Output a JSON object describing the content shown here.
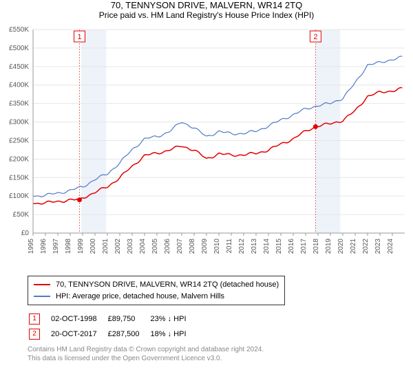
{
  "title": "70, TENNYSON DRIVE, MALVERN, WR14 2TQ",
  "subtitle": "Price paid vs. HM Land Registry's House Price Index (HPI)",
  "chart": {
    "type": "line",
    "background_color": "#ffffff",
    "plot_bands": [
      {
        "from": 1998.9,
        "to": 2000.9,
        "color": "#eef2f9"
      },
      {
        "from": 2017.8,
        "to": 2019.8,
        "color": "#eef2f9"
      }
    ],
    "x": {
      "min": 1995,
      "max": 2025,
      "ticks": [
        1995,
        1996,
        1997,
        1998,
        1999,
        2000,
        2001,
        2002,
        2003,
        2004,
        2005,
        2006,
        2007,
        2008,
        2009,
        2010,
        2011,
        2012,
        2013,
        2014,
        2015,
        2016,
        2017,
        2018,
        2019,
        2020,
        2021,
        2022,
        2023,
        2024
      ],
      "label_fontsize": 10,
      "rotation": -90,
      "color": "#555"
    },
    "y": {
      "min": 0,
      "max": 550000,
      "tick_step": 50000,
      "prefix": "£",
      "suffix": "K",
      "divisor": 1000,
      "label_fontsize": 10,
      "color": "#555"
    },
    "grid_color": "#e6e6e6",
    "series": [
      {
        "name": "property",
        "label": "70, TENNYSON DRIVE, MALVERN, WR14 2TQ (detached house)",
        "color": "#e30000",
        "width": 1.5,
        "data": [
          [
            1995,
            80000
          ],
          [
            1996,
            82000
          ],
          [
            1997,
            85000
          ],
          [
            1998,
            90000
          ],
          [
            1998.75,
            89750
          ],
          [
            1999,
            95000
          ],
          [
            2000,
            110000
          ],
          [
            2001,
            125000
          ],
          [
            2002,
            150000
          ],
          [
            2003,
            180000
          ],
          [
            2004,
            210000
          ],
          [
            2005,
            215000
          ],
          [
            2006,
            225000
          ],
          [
            2007,
            235000
          ],
          [
            2008,
            225000
          ],
          [
            2009,
            200000
          ],
          [
            2010,
            215000
          ],
          [
            2011,
            210000
          ],
          [
            2012,
            212000
          ],
          [
            2013,
            215000
          ],
          [
            2014,
            225000
          ],
          [
            2015,
            240000
          ],
          [
            2016,
            255000
          ],
          [
            2017,
            275000
          ],
          [
            2017.8,
            287500
          ],
          [
            2018,
            290000
          ],
          [
            2019,
            295000
          ],
          [
            2020,
            305000
          ],
          [
            2021,
            330000
          ],
          [
            2022,
            370000
          ],
          [
            2023,
            380000
          ],
          [
            2024,
            385000
          ],
          [
            2024.8,
            390000
          ]
        ]
      },
      {
        "name": "hpi",
        "label": "HPI: Average price, detached house, Malvern Hills",
        "color": "#4e7ac7",
        "width": 1.2,
        "data": [
          [
            1995,
            100000
          ],
          [
            1996,
            102000
          ],
          [
            1997,
            108000
          ],
          [
            1998,
            115000
          ],
          [
            1999,
            125000
          ],
          [
            2000,
            145000
          ],
          [
            2001,
            160000
          ],
          [
            2002,
            190000
          ],
          [
            2003,
            225000
          ],
          [
            2004,
            255000
          ],
          [
            2005,
            260000
          ],
          [
            2006,
            275000
          ],
          [
            2007,
            300000
          ],
          [
            2008,
            285000
          ],
          [
            2009,
            260000
          ],
          [
            2010,
            275000
          ],
          [
            2011,
            268000
          ],
          [
            2012,
            270000
          ],
          [
            2013,
            275000
          ],
          [
            2014,
            290000
          ],
          [
            2015,
            305000
          ],
          [
            2016,
            320000
          ],
          [
            2017,
            335000
          ],
          [
            2018,
            345000
          ],
          [
            2019,
            350000
          ],
          [
            2020,
            365000
          ],
          [
            2021,
            405000
          ],
          [
            2022,
            455000
          ],
          [
            2023,
            460000
          ],
          [
            2024,
            470000
          ],
          [
            2024.8,
            475000
          ]
        ]
      }
    ],
    "sale_markers": [
      {
        "n": 1,
        "x": 1998.75,
        "y": 89750,
        "line_color": "#e30000",
        "box_color": "#e30000"
      },
      {
        "n": 2,
        "x": 2017.8,
        "y": 287500,
        "line_color": "#e30000",
        "box_color": "#e30000"
      }
    ]
  },
  "legend": {
    "items": [
      {
        "color": "#e30000",
        "label": "70, TENNYSON DRIVE, MALVERN, WR14 2TQ (detached house)"
      },
      {
        "color": "#4e7ac7",
        "label": "HPI: Average price, detached house, Malvern Hills"
      }
    ]
  },
  "sales": [
    {
      "n": "1",
      "marker_color": "#e30000",
      "date": "02-OCT-1998",
      "price": "£89,750",
      "delta": "23% ↓ HPI"
    },
    {
      "n": "2",
      "marker_color": "#e30000",
      "date": "20-OCT-2017",
      "price": "£287,500",
      "delta": "18% ↓ HPI"
    }
  ],
  "footer": {
    "line1": "Contains HM Land Registry data © Crown copyright and database right 2024.",
    "line2": "This data is licensed under the Open Government Licence v3.0."
  }
}
